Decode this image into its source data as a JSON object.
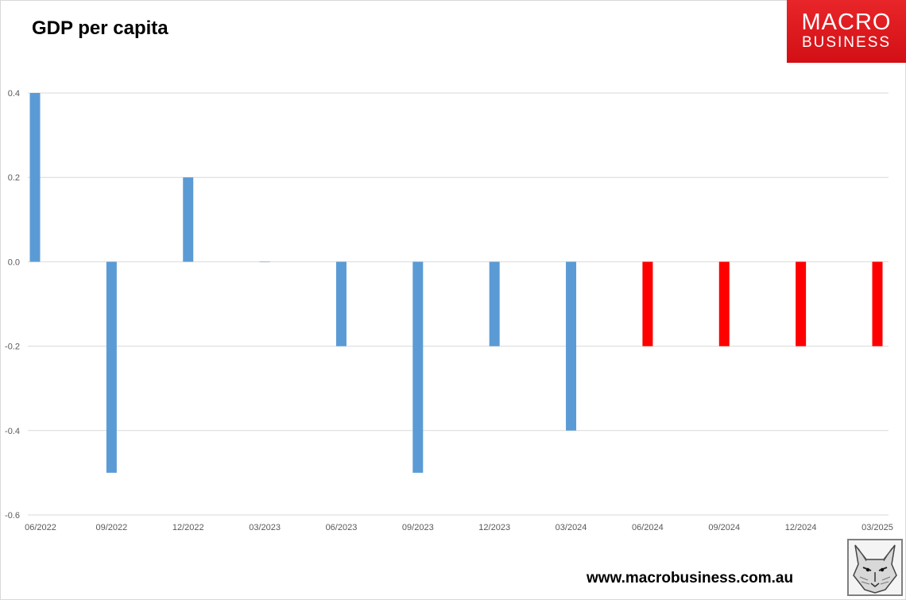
{
  "header": {
    "title": "GDP per capita"
  },
  "logo": {
    "line1": "MACRO",
    "line2": "BUSINESS"
  },
  "footer": {
    "url": "www.macrobusiness.com.au"
  },
  "colors": {
    "actual": "#5b9bd5",
    "forecast": "#ff0000",
    "grid": "#d9d9d9",
    "axis_text": "#595959"
  },
  "chart_data": {
    "type": "bar",
    "title": "GDP per capita",
    "categories": [
      "06/2022",
      "09/2022",
      "12/2022",
      "03/2023",
      "06/2023",
      "09/2023",
      "12/2023",
      "03/2024",
      "06/2024",
      "09/2024",
      "12/2024",
      "03/2025"
    ],
    "series": [
      {
        "values": [
          0.4,
          -0.5,
          0.2,
          0.0,
          -0.2,
          -0.5,
          -0.2,
          -0.4,
          null,
          null,
          null,
          null
        ],
        "color": "#5b9bd5"
      },
      {
        "values": [
          null,
          null,
          null,
          null,
          null,
          null,
          null,
          null,
          -0.2,
          -0.2,
          -0.2,
          -0.2
        ],
        "color": "#ff0000"
      }
    ],
    "ylim": [
      -0.6,
      0.4
    ],
    "yticks": [
      0.4,
      0.2,
      0.0,
      -0.2,
      -0.4,
      -0.6
    ],
    "ytick_labels": [
      "0.4",
      "0.2",
      "0.0",
      "-0.2",
      "-0.4",
      "-0.6"
    ],
    "xlabel": "",
    "ylabel": "",
    "grid": true,
    "legend": "none"
  }
}
